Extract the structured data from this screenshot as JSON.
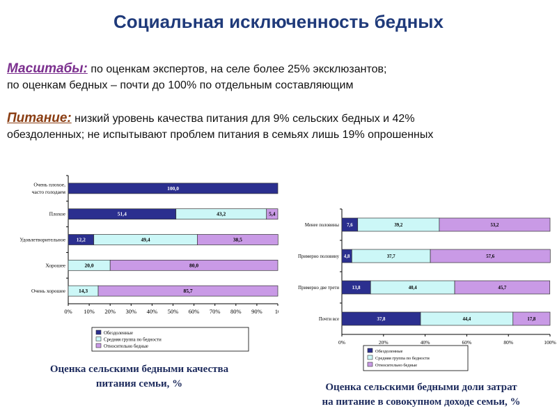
{
  "title": "Социальная исключенность бедных",
  "paragraphs": [
    {
      "label": "Масштабы:",
      "label_color": "#7b2f8e",
      "lines": [
        "по оценкам экспертов, на селе более 25% эксклюзантов;",
        "по оценкам бедных – почти до 100% по отдельным составляющим"
      ]
    },
    {
      "label": "Питание:",
      "label_color": "#8a3d12",
      "lines": [
        "низкий уровень качества питания для 9% сельских бедных и 42%",
        "обездоленных; не испытывают проблем питания в семьях лишь 19% опрошенных"
      ]
    }
  ],
  "colors": {
    "s1": "#2b2f8f",
    "s2": "#ccf7f7",
    "s3": "#c99ae6",
    "title": "#1f3a7a",
    "caption": "#1c2a5c"
  },
  "chart_data": [
    {
      "type": "bar",
      "orientation": "horizontal-stacked",
      "categories": [
        "Очень плохое, часто голодаем",
        "Плохое",
        "Удовлетворительное",
        "Хорошее",
        "Очень хорошее"
      ],
      "series": [
        {
          "name": "Обездоленные",
          "values": [
            100.0,
            51.4,
            12.2,
            0,
            0
          ]
        },
        {
          "name": "Средняя группа по бедности",
          "values": [
            0,
            43.2,
            49.4,
            20.0,
            14.3
          ]
        },
        {
          "name": "Относительно бедные",
          "values": [
            0,
            5.4,
            38.5,
            80.0,
            85.7
          ]
        }
      ],
      "value_labels": [
        [
          "100,0",
          "",
          ""
        ],
        [
          "51,4",
          "43,2",
          "5,4"
        ],
        [
          "12,2",
          "49,4",
          "38,5"
        ],
        [
          "",
          "20,0",
          "80,0"
        ],
        [
          "",
          "14,3",
          "85,7"
        ]
      ],
      "xticks": [
        "0%",
        "10%",
        "20%",
        "30%",
        "40%",
        "50%",
        "60%",
        "70%",
        "80%",
        "90%",
        "10"
      ],
      "xlim": [
        0,
        100
      ],
      "grid": false,
      "legend": "bottom",
      "caption_lines": [
        "Оценка сельскими бедными качества",
        "питания семьи, %"
      ]
    },
    {
      "type": "bar",
      "orientation": "horizontal-stacked",
      "categories": [
        "Менее половины",
        "Примерно половину",
        "Примерно две трети",
        "Почти все"
      ],
      "series": [
        {
          "name": "Обездоленные",
          "values": [
            7.6,
            4.8,
            13.8,
            37.8
          ]
        },
        {
          "name": "Средняя группа по бедности",
          "values": [
            39.2,
            37.7,
            40.4,
            44.4
          ]
        },
        {
          "name": "Относительно бедные",
          "values": [
            53.2,
            57.6,
            45.7,
            17.8
          ]
        }
      ],
      "value_labels": [
        [
          "7,6",
          "39,2",
          "53,2"
        ],
        [
          "4,8",
          "37,7",
          "57,6"
        ],
        [
          "13,8",
          "40,4",
          "45,7"
        ],
        [
          "37,8",
          "44,4",
          "17,8"
        ]
      ],
      "xticks": [
        "0%",
        "20%",
        "40%",
        "60%",
        "80%",
        "100%"
      ],
      "xlim": [
        0,
        100
      ],
      "grid": false,
      "legend": "bottom",
      "caption_lines": [
        "Оценка сельскими бедными доли затрат",
        "на питание в совокупном доходе семьи, %"
      ]
    }
  ]
}
